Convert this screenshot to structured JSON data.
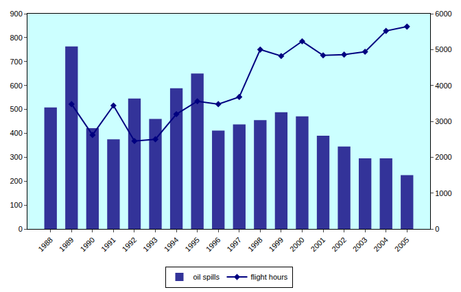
{
  "chart_data": {
    "type": "bar",
    "categories": [
      "1988",
      "1989",
      "1990",
      "1991",
      "1992",
      "1993",
      "1994",
      "1995",
      "1996",
      "1997",
      "1998",
      "1999",
      "2000",
      "2001",
      "2002",
      "2003",
      "2004",
      "2005"
    ],
    "series": [
      {
        "name": "oil spills",
        "type": "bar",
        "color": "#333399",
        "values": [
          508,
          763,
          421,
          375,
          545,
          460,
          588,
          650,
          411,
          437,
          455,
          488,
          471,
          390,
          345,
          295,
          295,
          225
        ]
      },
      {
        "name": "flight hours",
        "type": "line",
        "axis": "y2",
        "color": "#000080",
        "marker": "diamond",
        "values": [
          null,
          3480,
          2620,
          3440,
          2450,
          2500,
          3200,
          3560,
          3480,
          3680,
          5000,
          4820,
          5230,
          4840,
          4860,
          4940,
          5520,
          5640
        ]
      }
    ],
    "ylim": [
      0,
      900
    ],
    "yticks": [
      0,
      100,
      200,
      300,
      400,
      500,
      600,
      700,
      800,
      900
    ],
    "y2lim": [
      0,
      6000
    ],
    "y2ticks": [
      0,
      1000,
      2000,
      3000,
      4000,
      5000,
      6000
    ],
    "grid": false,
    "legend": "bottom"
  }
}
